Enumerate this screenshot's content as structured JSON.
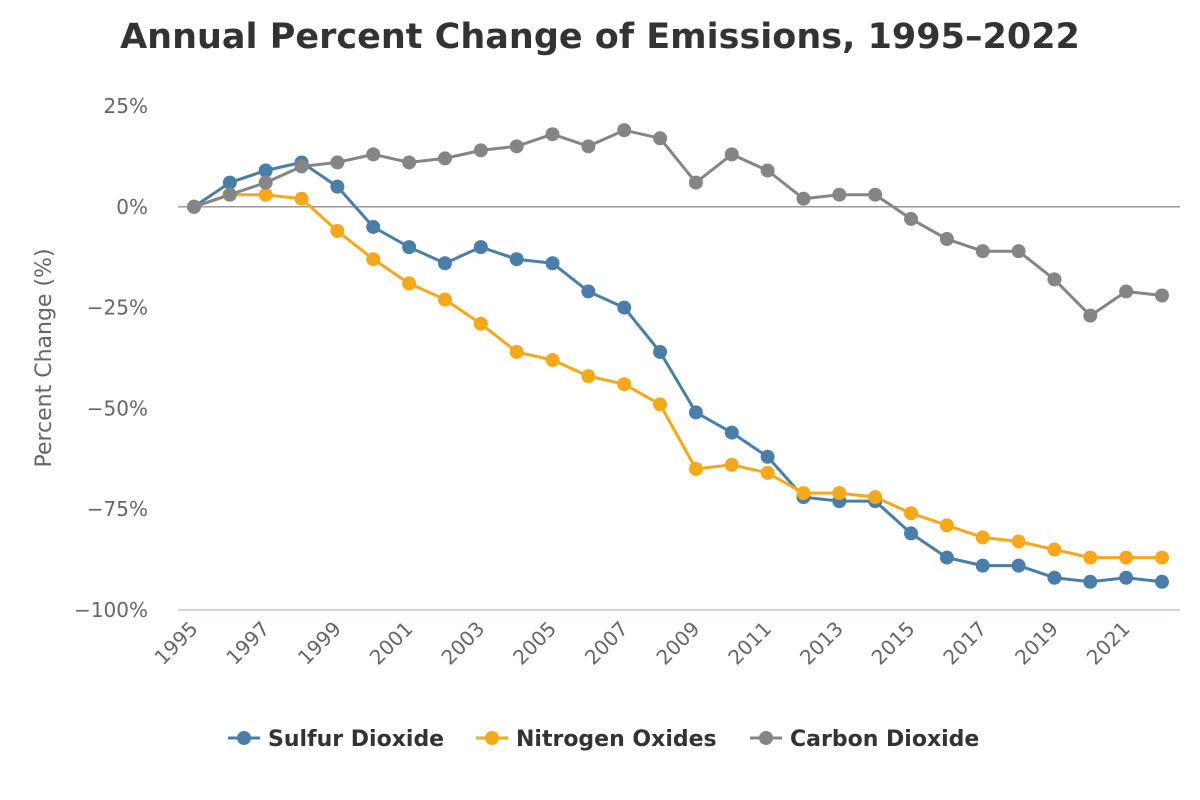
{
  "chart_data": {
    "type": "line",
    "title": "Annual Percent Change of Emissions, 1995–2022",
    "xlabel": "",
    "ylabel": "Percent Change (%)",
    "ylim": [
      -100,
      25
    ],
    "yticks": [
      "25%",
      "0%",
      "−25%",
      "−50%",
      "−75%",
      "−100%"
    ],
    "ytick_values": [
      25,
      0,
      -25,
      -50,
      -75,
      -100
    ],
    "x": [
      1995,
      1996,
      1997,
      1998,
      1999,
      2000,
      2001,
      2002,
      2003,
      2004,
      2005,
      2006,
      2007,
      2008,
      2009,
      2010,
      2011,
      2012,
      2013,
      2014,
      2015,
      2016,
      2017,
      2018,
      2019,
      2020,
      2021,
      2022
    ],
    "xticks": [
      "1995",
      "1997",
      "1999",
      "2001",
      "2003",
      "2005",
      "2007",
      "2009",
      "2011",
      "2013",
      "2015",
      "2017",
      "2019",
      "2021"
    ],
    "xtick_values": [
      1995,
      1997,
      1999,
      2001,
      2003,
      2005,
      2007,
      2009,
      2011,
      2013,
      2015,
      2017,
      2019,
      2021
    ],
    "grid": false,
    "zero_line": true,
    "legend_position": "bottom",
    "series": [
      {
        "name": "Sulfur Dioxide",
        "color": "#4a7ea8",
        "values": [
          0,
          6,
          9,
          11,
          5,
          -5,
          -10,
          -14,
          -10,
          -13,
          -14,
          -21,
          -25,
          -36,
          -51,
          -56,
          -62,
          -72,
          -73,
          -73,
          -81,
          -87,
          -89,
          -89,
          -92,
          -93,
          -92,
          -93
        ]
      },
      {
        "name": "Nitrogen Oxides",
        "color": "#f5a81c",
        "values": [
          0,
          3,
          3,
          2,
          -6,
          -13,
          -19,
          -23,
          -29,
          -36,
          -38,
          -42,
          -44,
          -49,
          -65,
          -64,
          -66,
          -71,
          -71,
          -72,
          -76,
          -79,
          -82,
          -83,
          -85,
          -87,
          -87,
          -87
        ]
      },
      {
        "name": "Carbon Dioxide",
        "color": "#858585",
        "values": [
          0,
          3,
          6,
          10,
          11,
          13,
          11,
          12,
          14,
          15,
          18,
          15,
          19,
          17,
          6,
          13,
          9,
          2,
          3,
          3,
          -3,
          -8,
          -11,
          -11,
          -18,
          -27,
          -21,
          -22
        ]
      }
    ]
  }
}
